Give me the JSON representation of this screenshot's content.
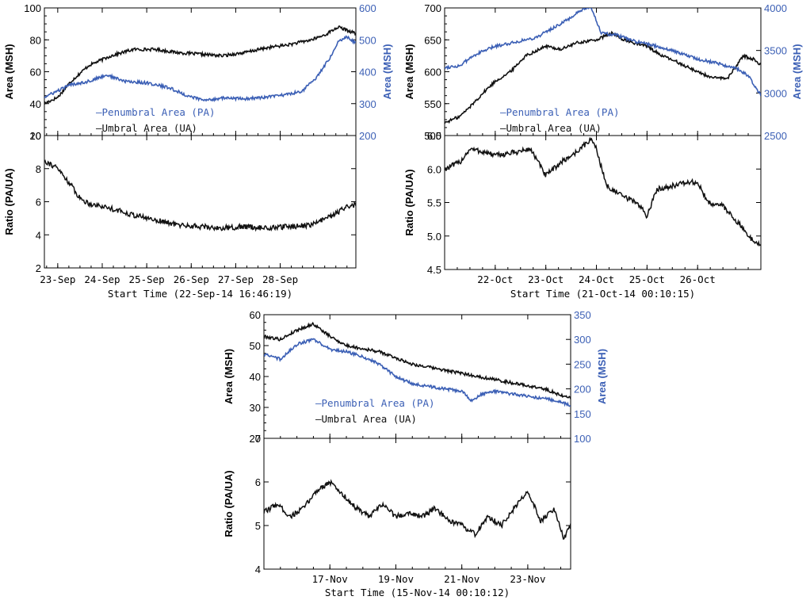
{
  "colors": {
    "umbral": "#111111",
    "penumbral": "#3b5fb5",
    "axis": "#000000"
  },
  "chart_data": [
    {
      "id": "sep",
      "type": "line",
      "title": "",
      "xlabel": "Start Time (22-Sep-14 16:46:19)",
      "x_tick_labels": [
        "23-Sep",
        "24-Sep",
        "25-Sep",
        "26-Sep",
        "27-Sep",
        "28-Sep"
      ],
      "x_range_days": [
        0,
        7.0
      ],
      "x_tick_positions_days": [
        0.3,
        1.3,
        2.3,
        3.3,
        4.3,
        5.3
      ],
      "area_panel": {
        "ylabel_left": "Area (MSH)",
        "ylabel_right": "Area (MSH)",
        "ylim_left": [
          20,
          100
        ],
        "yticks_left": [
          "20",
          "40",
          "60",
          "80",
          "100"
        ],
        "ylim_right": [
          200,
          600
        ],
        "yticks_right": [
          "200",
          "300",
          "400",
          "500",
          "600"
        ],
        "legend": [
          "–Penumbral Area (PA)",
          "–Umbral Area (UA)"
        ],
        "series": [
          {
            "name": "Umbral Area (UA)",
            "axis": "left",
            "x": [
              0,
              0.3,
              0.6,
              1.0,
              1.5,
              2.0,
              2.5,
              3.0,
              3.5,
              4.0,
              4.5,
              5.0,
              5.5,
              6.0,
              6.3,
              6.6,
              6.8,
              7.0
            ],
            "y": [
              40,
              44,
              54,
              64,
              70,
              74,
              74,
              72,
              71,
              70,
              72,
              75,
              77,
              80,
              83,
              88,
              86,
              84
            ]
          },
          {
            "name": "Penumbral Area (PA)",
            "axis": "right",
            "x": [
              0,
              0.3,
              0.6,
              1.0,
              1.4,
              1.8,
              2.3,
              2.8,
              3.2,
              3.6,
              4.0,
              4.5,
              5.0,
              5.5,
              5.8,
              6.1,
              6.4,
              6.6,
              6.8,
              7.0
            ],
            "y": [
              320,
              340,
              360,
              370,
              390,
              370,
              365,
              350,
              325,
              310,
              318,
              315,
              320,
              330,
              340,
              380,
              440,
              495,
              510,
              490
            ]
          }
        ]
      },
      "ratio_panel": {
        "ylabel": "Ratio (PA/UA)",
        "ylim": [
          2,
          10
        ],
        "yticks": [
          "2",
          "4",
          "6",
          "8",
          "10"
        ],
        "series": [
          {
            "name": "PA/UA",
            "x": [
              0,
              0.3,
              0.6,
              0.8,
              1.0,
              1.5,
              2.0,
              2.5,
              3.0,
              3.5,
              4.0,
              4.5,
              5.0,
              5.5,
              6.0,
              6.5,
              6.8,
              7.0
            ],
            "y": [
              8.5,
              8.0,
              7.0,
              6.2,
              5.9,
              5.6,
              5.2,
              4.9,
              4.6,
              4.5,
              4.4,
              4.5,
              4.4,
              4.5,
              4.6,
              5.2,
              5.7,
              5.8
            ]
          }
        ]
      }
    },
    {
      "id": "oct",
      "type": "line",
      "title": "",
      "xlabel": "Start Time (21-Oct-14 00:10:15)",
      "x_tick_labels": [
        "22-Oct",
        "23-Oct",
        "24-Oct",
        "25-Oct",
        "26-Oct"
      ],
      "x_range_days": [
        0,
        6.25
      ],
      "x_tick_positions_days": [
        1,
        2,
        3,
        4,
        5
      ],
      "area_panel": {
        "ylabel_left": "Area (MSH)",
        "ylabel_right": "Area (MSH)",
        "ylim_left": [
          500,
          700
        ],
        "yticks_left": [
          "500",
          "550",
          "600",
          "650",
          "700"
        ],
        "ylim_right": [
          2500,
          4000
        ],
        "yticks_right": [
          "2500",
          "3000",
          "3500",
          "4000"
        ],
        "legend": [
          "–Penumbral Area (PA)",
          "–Umbral Area (UA)"
        ],
        "series": [
          {
            "name": "Umbral Area (UA)",
            "axis": "left",
            "x": [
              0,
              0.3,
              0.5,
              0.8,
              1.0,
              1.3,
              1.6,
              2.0,
              2.3,
              2.6,
              3.0,
              3.3,
              3.6,
              4.0,
              4.3,
              4.6,
              5.0,
              5.3,
              5.6,
              5.9,
              6.1,
              6.25
            ],
            "y": [
              520,
              530,
              545,
              570,
              585,
              600,
              625,
              640,
              635,
              645,
              650,
              660,
              648,
              640,
              625,
              615,
              600,
              590,
              590,
              625,
              620,
              610
            ]
          },
          {
            "name": "Penumbral Area (PA)",
            "axis": "right",
            "x": [
              0,
              0.3,
              0.6,
              1.0,
              1.4,
              1.8,
              2.1,
              2.4,
              2.7,
              2.9,
              3.1,
              3.4,
              3.8,
              4.2,
              4.6,
              5.0,
              5.4,
              5.8,
              6.0,
              6.25
            ],
            "y": [
              3300,
              3320,
              3450,
              3550,
              3600,
              3650,
              3750,
              3850,
              3970,
              4000,
              3700,
              3680,
              3600,
              3550,
              3480,
              3400,
              3350,
              3280,
              3200,
              2980
            ]
          }
        ]
      },
      "ratio_panel": {
        "ylabel": "Ratio (PA/UA)",
        "ylim": [
          4.5,
          6.5
        ],
        "yticks": [
          "4.5",
          "5.0",
          "5.5",
          "6.0",
          "6.5"
        ],
        "series": [
          {
            "name": "PA/UA",
            "x": [
              0,
              0.3,
              0.5,
              0.8,
              1.0,
              1.4,
              1.7,
              2.0,
              2.3,
              2.6,
              2.9,
              3.0,
              3.2,
              3.5,
              3.8,
              4.0,
              4.2,
              4.5,
              4.8,
              5.0,
              5.2,
              5.5,
              5.8,
              6.0,
              6.25
            ],
            "y": [
              6.0,
              6.1,
              6.3,
              6.25,
              6.2,
              6.25,
              6.3,
              5.9,
              6.1,
              6.25,
              6.45,
              6.3,
              5.75,
              5.6,
              5.5,
              5.3,
              5.7,
              5.75,
              5.8,
              5.8,
              5.5,
              5.45,
              5.2,
              5.0,
              4.85
            ]
          }
        ]
      }
    },
    {
      "id": "nov",
      "type": "line",
      "title": "",
      "xlabel": "Start Time (15-Nov-14 00:10:12)",
      "x_tick_labels": [
        "17-Nov",
        "19-Nov",
        "21-Nov",
        "23-Nov"
      ],
      "x_range_days": [
        0,
        9.3
      ],
      "x_tick_positions_days": [
        2,
        4,
        6,
        8
      ],
      "area_panel": {
        "ylabel_left": "Area (MSH)",
        "ylabel_right": "Area (MSH)",
        "ylim_left": [
          20,
          60
        ],
        "yticks_left": [
          "20",
          "30",
          "40",
          "50",
          "60"
        ],
        "ylim_right": [
          100,
          350
        ],
        "yticks_right": [
          "100",
          "150",
          "200",
          "250",
          "300",
          "350"
        ],
        "legend": [
          "–Penumbral Area (PA)",
          "–Umbral Area (UA)"
        ],
        "series": [
          {
            "name": "Umbral Area (UA)",
            "axis": "left",
            "x": [
              0,
              0.5,
              1.0,
              1.5,
              2.0,
              2.5,
              3.0,
              3.5,
              4.0,
              4.5,
              5.0,
              5.5,
              6.0,
              6.5,
              7.0,
              7.5,
              8.0,
              8.5,
              9.0,
              9.3
            ],
            "y": [
              53,
              52,
              55,
              57,
              53,
              50,
              49,
              48,
              46,
              44,
              43,
              42,
              41,
              40,
              39,
              38,
              37,
              36,
              34,
              33
            ]
          },
          {
            "name": "Penumbral Area (PA)",
            "axis": "right",
            "x": [
              0,
              0.5,
              1.0,
              1.5,
              2.0,
              2.5,
              3.0,
              3.5,
              4.0,
              4.5,
              5.0,
              5.5,
              6.0,
              6.3,
              6.6,
              7.0,
              7.5,
              8.0,
              8.5,
              9.0,
              9.3
            ],
            "y": [
              270,
              260,
              290,
              300,
              280,
              275,
              265,
              250,
              225,
              210,
              205,
              200,
              195,
              175,
              190,
              195,
              190,
              185,
              180,
              175,
              165
            ]
          }
        ]
      },
      "ratio_panel": {
        "ylabel": "Ratio (PA/UA)",
        "ylim": [
          4,
          7
        ],
        "yticks": [
          "4",
          "5",
          "6",
          "7"
        ],
        "series": [
          {
            "name": "PA/UA",
            "x": [
              0,
              0.4,
              0.8,
              1.2,
              1.6,
              2.0,
              2.4,
              2.8,
              3.2,
              3.6,
              4.0,
              4.4,
              4.8,
              5.2,
              5.6,
              6.0,
              6.4,
              6.8,
              7.2,
              7.6,
              8.0,
              8.4,
              8.8,
              9.1,
              9.3
            ],
            "y": [
              5.3,
              5.5,
              5.2,
              5.4,
              5.8,
              6.0,
              5.7,
              5.4,
              5.2,
              5.5,
              5.2,
              5.3,
              5.2,
              5.4,
              5.1,
              5.0,
              4.8,
              5.2,
              5.0,
              5.4,
              5.8,
              5.1,
              5.4,
              4.7,
              5.0
            ]
          }
        ]
      }
    }
  ]
}
